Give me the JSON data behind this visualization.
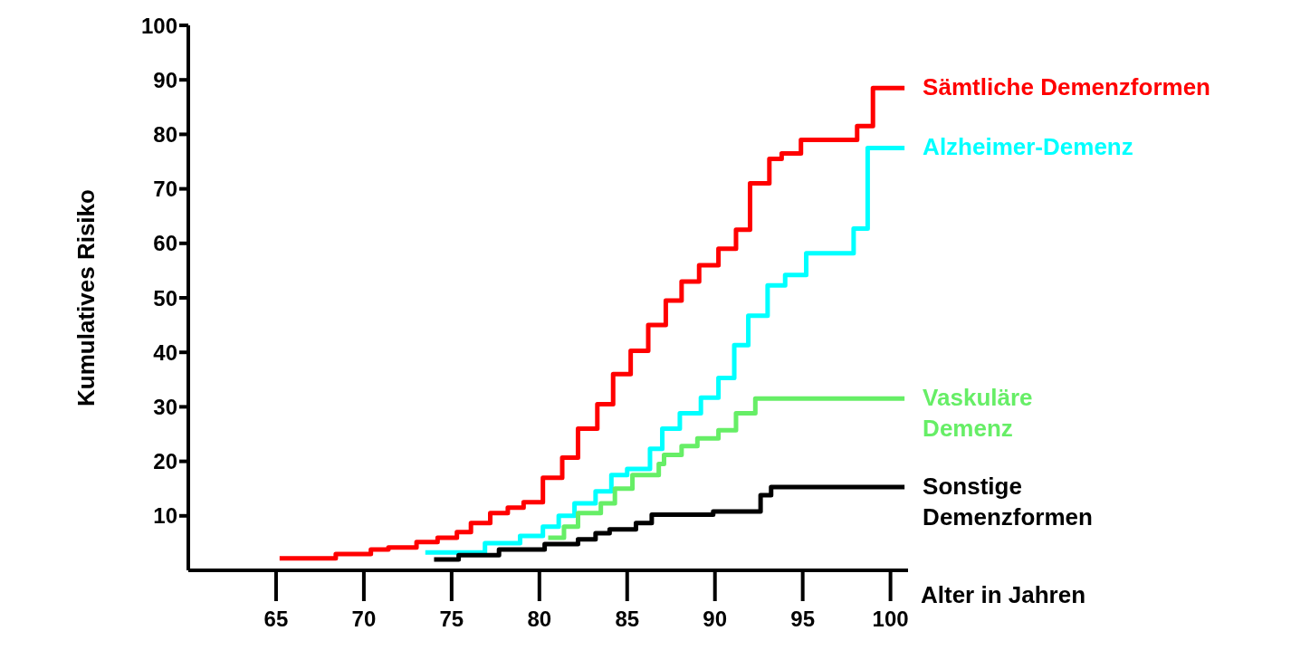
{
  "chart_data": {
    "type": "step",
    "xlabel": "Alter in Jahren",
    "ylabel": "Kumulatives Risiko",
    "xlim": [
      60,
      101
    ],
    "xticks": [
      65,
      70,
      75,
      80,
      85,
      90,
      95,
      100
    ],
    "ylim": [
      0,
      100
    ],
    "yticks": [
      10,
      20,
      30,
      40,
      50,
      60,
      70,
      80,
      90,
      100
    ],
    "grid": false,
    "legend": false,
    "marker": "none",
    "line_style": "solid",
    "series": [
      {
        "name": "Sämtliche Demenzformen",
        "color": "#ff0000",
        "x": [
          65.2,
          68.4,
          70.4,
          71.4,
          73,
          74.2,
          75.3,
          76.1,
          77.2,
          78.2,
          79.1,
          80.2,
          81.3,
          82.2,
          83.3,
          84.2,
          85.2,
          86.2,
          87.2,
          88.1,
          89.1,
          90.2,
          91.2,
          92,
          93.1,
          93.8,
          94.9,
          98.1,
          99,
          100.8
        ],
        "values": [
          2.2,
          3,
          3.8,
          4.2,
          5.2,
          6,
          7,
          8.7,
          10.5,
          11.5,
          12.5,
          17,
          20.7,
          26,
          30.5,
          36,
          40.3,
          45,
          49.5,
          53,
          56,
          59,
          62.5,
          71,
          75.5,
          76.5,
          79,
          81.5,
          88.5,
          88.5
        ]
      },
      {
        "name": "Alzheimer-Demenz",
        "color": "#00ffff",
        "x": [
          73.5,
          76.9,
          78.9,
          80.2,
          81.1,
          82,
          83.2,
          84.1,
          85,
          86.3,
          87,
          88,
          89.2,
          90.2,
          91.1,
          91.9,
          93,
          94,
          95.2,
          97.9,
          98.7,
          100.8
        ],
        "values": [
          3.3,
          5,
          6.3,
          8,
          10,
          12.3,
          14.5,
          17.5,
          18.6,
          22.3,
          26,
          28.8,
          31.7,
          35.3,
          41.3,
          46.7,
          52.3,
          54.2,
          58.2,
          62.7,
          77.5,
          77.5
        ]
      },
      {
        "name": "Vaskuläre\nDemenz",
        "color": "#66ee66",
        "x": [
          80.5,
          81.4,
          82.2,
          83.5,
          84.3,
          85.3,
          86.8,
          87.1,
          88.1,
          89,
          90.2,
          91.2,
          92.3,
          100.8
        ],
        "values": [
          6,
          8,
          10.5,
          12.3,
          15,
          17.5,
          19.5,
          21.2,
          22.8,
          24.2,
          25.7,
          28.8,
          31.5,
          31.5
        ]
      },
      {
        "name": "Sonstige\nDemenzformen",
        "color": "#000000",
        "x": [
          74,
          75.4,
          77.7,
          80.3,
          82.2,
          83.2,
          84,
          85.5,
          86.4,
          89.9,
          92.6,
          93.2,
          100.8
        ],
        "values": [
          2,
          2.8,
          3.8,
          4.8,
          5.7,
          6.8,
          7.5,
          8.7,
          10.2,
          10.8,
          13.8,
          15.3,
          15.3
        ]
      }
    ]
  }
}
